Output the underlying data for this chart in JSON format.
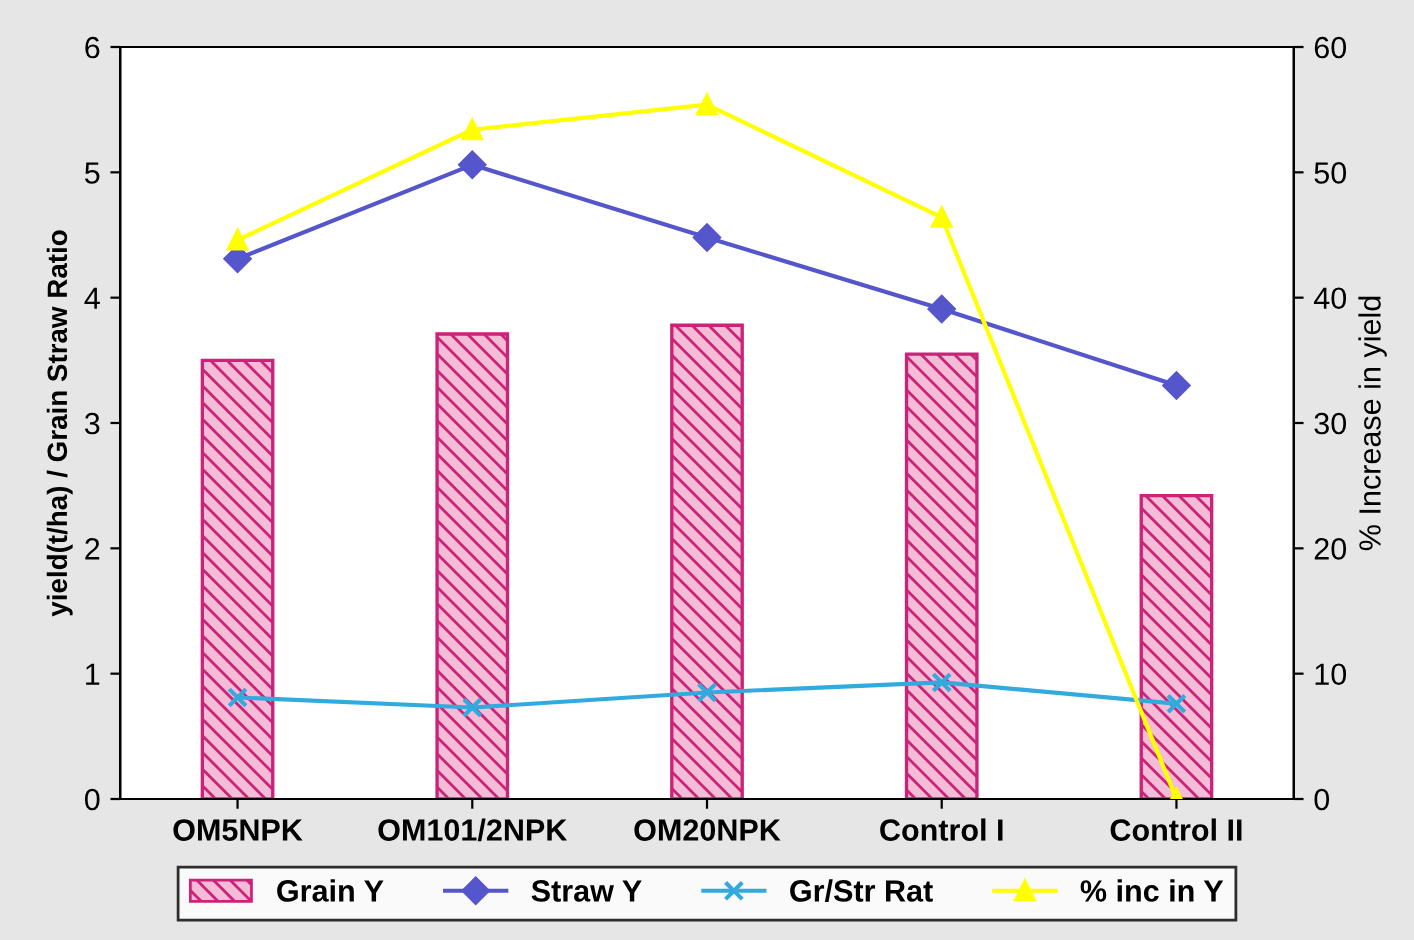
{
  "chart_data": {
    "type": "bar",
    "ylabel": "yield(t/ha) / Grain Straw Ratio",
    "y2label": "% Increase in yield",
    "categories": [
      "OM5NPK",
      "OM101/2NPK",
      "OM20NPK",
      "Control I",
      "Control II"
    ],
    "series": [
      {
        "name": "Grain Y",
        "color": "#cc2277",
        "values": [
          3.5,
          3.71,
          3.78,
          3.55,
          2.42
        ]
      },
      {
        "name": "Straw Y",
        "type": "line",
        "color": "#5555cc",
        "marker": "diamond",
        "values": [
          4.31,
          5.06,
          4.48,
          3.91,
          3.3
        ]
      },
      {
        "name": "Gr/Str Rat",
        "type": "line",
        "color": "#33aadd",
        "marker": "cross",
        "values": [
          0.81,
          0.73,
          0.85,
          0.93,
          0.76
        ]
      },
      {
        "name": "% inc in Y",
        "type": "line",
        "color": "#ffff00",
        "marker": "triangle",
        "axis": "y2",
        "values": [
          44.6,
          53.4,
          55.4,
          46.4,
          0
        ]
      }
    ],
    "ylim": [
      0,
      6
    ],
    "yticks": [
      0,
      1,
      2,
      3,
      4,
      5,
      6
    ],
    "y2lim": [
      0,
      60
    ],
    "y2ticks": [
      0,
      10,
      20,
      30,
      40,
      50,
      60
    ],
    "legend": "bottom",
    "grid": false
  }
}
